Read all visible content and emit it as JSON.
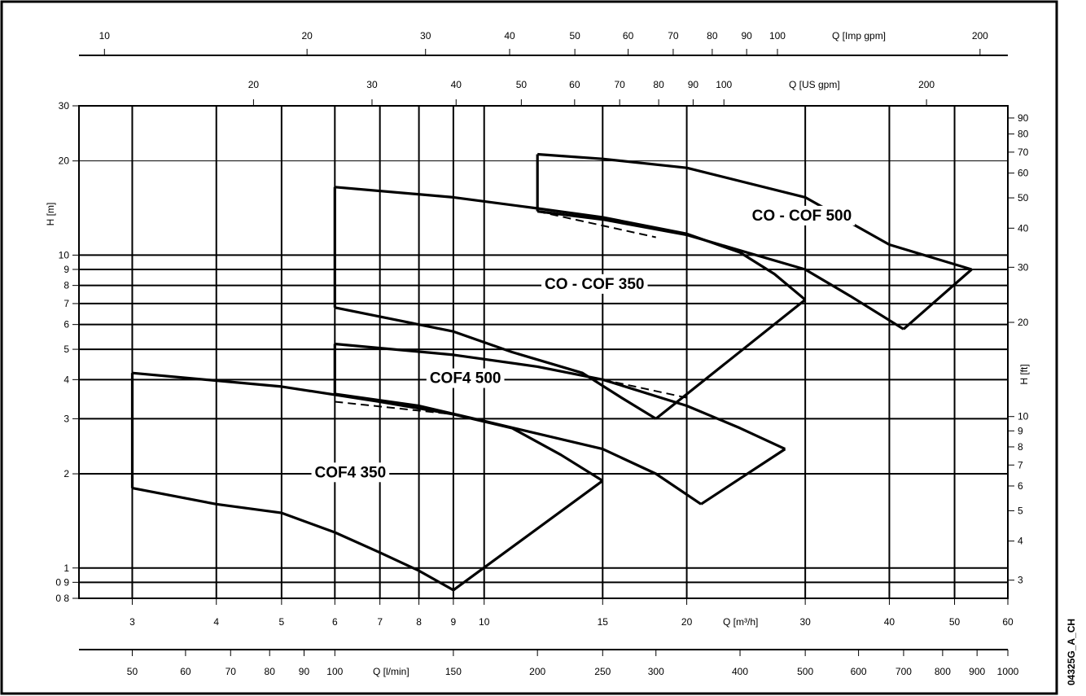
{
  "chart_data": {
    "type": "line",
    "title": "",
    "x_axes": {
      "bottom_primary": {
        "label": "Q [m³/h]",
        "scale": "log",
        "range": [
          2.5,
          60
        ],
        "ticks": [
          3,
          4,
          5,
          6,
          7,
          8,
          9,
          10,
          15,
          20,
          30,
          40,
          50,
          60
        ],
        "tick_labels": [
          "3",
          "4",
          "5",
          "6",
          "7",
          "8",
          "9",
          "10",
          "15",
          "20",
          "30",
          "40",
          "50",
          "60"
        ]
      },
      "bottom_secondary": {
        "label": "Q [l/min]",
        "scale": "log",
        "ticks": [
          50,
          60,
          70,
          80,
          90,
          100,
          150,
          200,
          250,
          300,
          400,
          500,
          600,
          700,
          800,
          900,
          1000
        ],
        "tick_labels": [
          "50",
          "60",
          "70",
          "80",
          "90",
          "100",
          "150",
          "200",
          "250",
          "300",
          "400",
          "500",
          "600",
          "700",
          "800",
          "900",
          "1000"
        ]
      },
      "top_us": {
        "label": "Q [US gpm]",
        "scale": "log",
        "ticks": [
          20,
          30,
          40,
          50,
          60,
          70,
          80,
          90,
          100,
          200
        ],
        "tick_labels": [
          "20",
          "30",
          "40",
          "50",
          "60",
          "70",
          "80",
          "90",
          "100",
          "200"
        ]
      },
      "top_imp": {
        "label": "Q [Imp gpm]",
        "scale": "log",
        "ticks": [
          10,
          20,
          30,
          40,
          50,
          60,
          70,
          80,
          90,
          100,
          200
        ],
        "tick_labels": [
          "10",
          "20",
          "30",
          "40",
          "50",
          "60",
          "70",
          "80",
          "90",
          "100",
          "200"
        ]
      }
    },
    "y_axes": {
      "left": {
        "label": "H [m]",
        "scale": "log",
        "range": [
          0.8,
          30
        ],
        "ticks": [
          0.8,
          0.9,
          1,
          2,
          3,
          4,
          5,
          6,
          7,
          8,
          9,
          10,
          20,
          30
        ],
        "tick_labels": [
          "0 8",
          "0 9",
          "1",
          "2",
          "3",
          "4",
          "5",
          "6",
          "7",
          "8",
          "9",
          "10",
          "20",
          "30"
        ]
      },
      "right": {
        "label": "H [ft]",
        "scale": "log",
        "ticks": [
          3,
          4,
          5,
          6,
          7,
          8,
          9,
          10,
          20,
          30,
          40,
          50,
          60,
          70,
          80,
          90
        ],
        "tick_labels": [
          "3",
          "4",
          "5",
          "6",
          "7",
          "8",
          "9",
          "10",
          "20",
          "30",
          "40",
          "50",
          "60",
          "70",
          "80",
          "90"
        ]
      }
    },
    "grid": {
      "vertical_q": [
        3,
        4,
        5,
        6,
        7,
        8,
        9,
        10,
        15,
        20,
        30,
        40,
        50
      ],
      "horizontal_h": [
        0.9,
        1,
        2,
        3,
        4,
        5,
        6,
        7,
        8,
        9,
        10,
        20
      ]
    },
    "series": [
      {
        "name": "CO - COF 500",
        "upper": [
          [
            12,
            21
          ],
          [
            15,
            20.3
          ],
          [
            20,
            19
          ],
          [
            30,
            15.3
          ],
          [
            40,
            10.8
          ],
          [
            53,
            9
          ]
        ],
        "lower": [
          [
            12,
            13.8
          ],
          [
            15,
            13
          ],
          [
            20,
            11.6
          ],
          [
            30,
            9
          ],
          [
            35,
            7.4
          ],
          [
            42,
            5.8
          ]
        ],
        "closing": [
          [
            42,
            5.8
          ],
          [
            53,
            9
          ]
        ],
        "dashed": [
          [
            12,
            13.8
          ],
          [
            18,
            11.4
          ]
        ]
      },
      {
        "name": "CO - COF 350",
        "upper": [
          [
            6,
            16.5
          ],
          [
            9,
            15.3
          ],
          [
            12,
            14.1
          ],
          [
            15,
            13.2
          ],
          [
            20,
            11.7
          ],
          [
            24,
            10.2
          ],
          [
            27,
            8.7
          ],
          [
            30,
            7.2
          ]
        ],
        "lower": [
          [
            6,
            6.8
          ],
          [
            9,
            5.7
          ],
          [
            11,
            4.9
          ],
          [
            14,
            4.2
          ],
          [
            16,
            3.5
          ],
          [
            18,
            3
          ]
        ],
        "closing": [
          [
            18,
            3
          ],
          [
            30,
            7.2
          ]
        ]
      },
      {
        "name": "COF4 500",
        "upper": [
          [
            6,
            5.2
          ],
          [
            9,
            4.8
          ],
          [
            12,
            4.4
          ],
          [
            15,
            4
          ],
          [
            20,
            3.3
          ],
          [
            24,
            2.8
          ],
          [
            28,
            2.4
          ]
        ],
        "lower": [
          [
            6,
            3.6
          ],
          [
            8,
            3.3
          ],
          [
            10,
            2.95
          ],
          [
            15,
            2.4
          ],
          [
            18,
            2
          ],
          [
            21,
            1.6
          ]
        ],
        "closing": [
          [
            21,
            1.6
          ],
          [
            28,
            2.4
          ]
        ],
        "dashed": [
          [
            6,
            3.4
          ],
          [
            9,
            3.1
          ]
        ],
        "dashed2": [
          [
            15,
            4
          ],
          [
            20,
            3.5
          ]
        ]
      },
      {
        "name": "COF4 350",
        "upper": [
          [
            3,
            4.2
          ],
          [
            5,
            3.8
          ],
          [
            7,
            3.4
          ],
          [
            9,
            3.1
          ],
          [
            11,
            2.8
          ],
          [
            13,
            2.3
          ],
          [
            15,
            1.9
          ]
        ],
        "lower": [
          [
            3,
            1.8
          ],
          [
            4,
            1.6
          ],
          [
            5,
            1.5
          ],
          [
            6,
            1.3
          ],
          [
            7,
            1.12
          ],
          [
            8,
            0.98
          ],
          [
            9,
            0.85
          ]
        ],
        "closing": [
          [
            9,
            0.85
          ],
          [
            15,
            1.9
          ]
        ]
      }
    ],
    "label_positions": [
      "CO - COF 500",
      "CO - COF 350",
      "COF4 500",
      "COF4 350"
    ],
    "side_text": "04325G_A_CH"
  }
}
